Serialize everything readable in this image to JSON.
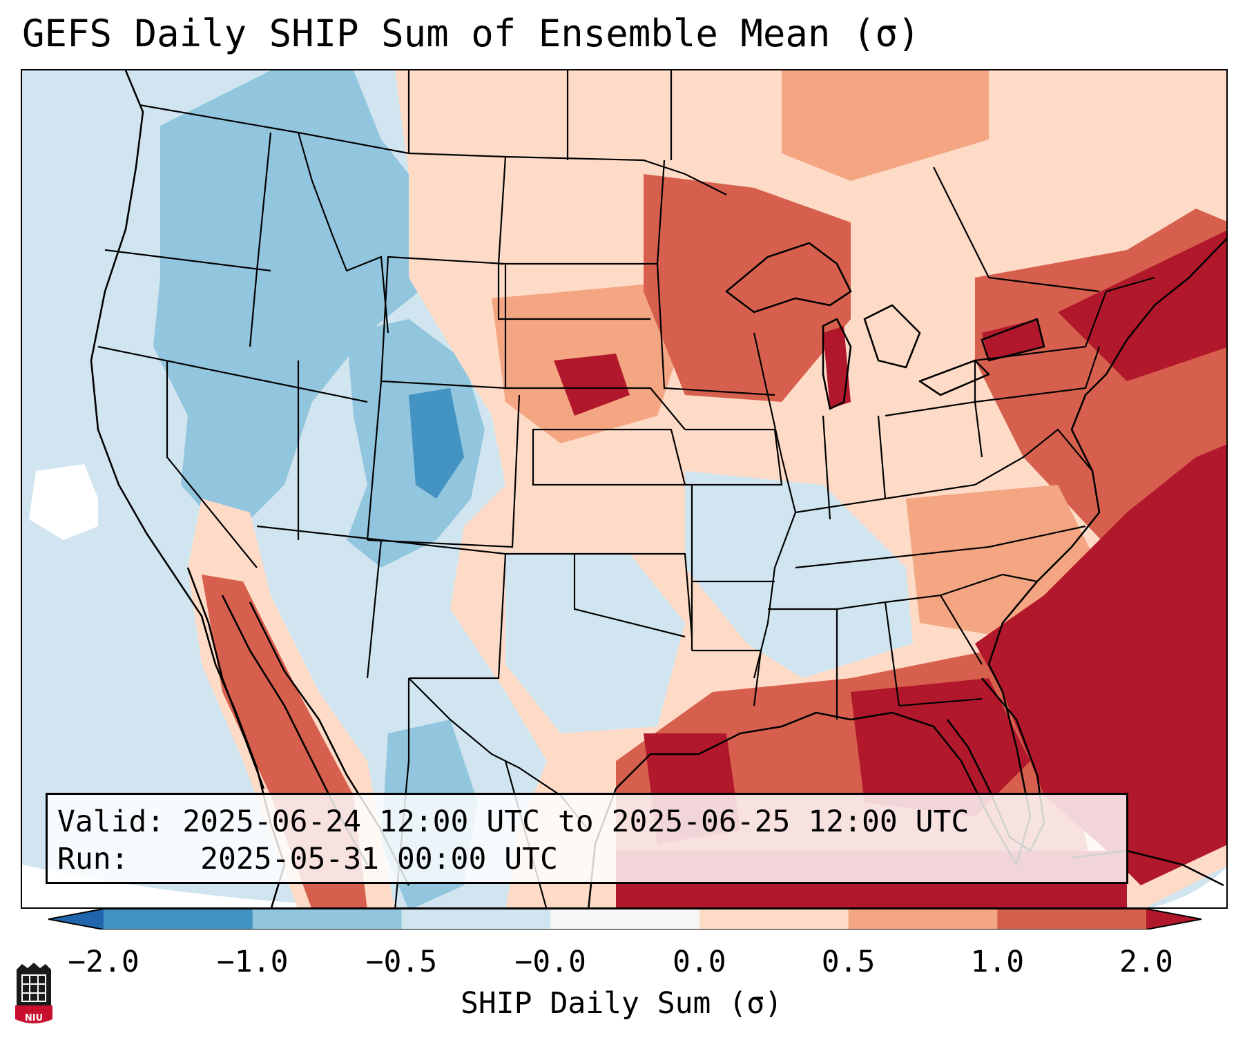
{
  "header": {
    "title": "GEFS Daily SHIP Sum of Ensemble Mean (σ)"
  },
  "info": {
    "valid_label": "Valid:",
    "valid_value": "2025-06-24 12:00 UTC to 2025-06-25 12:00 UTC",
    "run_label": "Run:",
    "run_value": "2025-05-31 00:00 UTC"
  },
  "colorbar": {
    "label": "SHIP Daily Sum (σ)",
    "tick_labels": [
      "−2.0",
      "−1.0",
      "−0.5",
      "−0.0",
      "0.0",
      "0.5",
      "1.0",
      "2.0"
    ],
    "bin_colors": [
      "#4393c3",
      "#92c5de",
      "#d1e5f0",
      "#f7f7f7",
      "#fddbc7",
      "#f4a582",
      "#d6604d",
      "#b2182b"
    ],
    "under_color": "#2166ac",
    "over_color": "#b2182b"
  },
  "logo": {
    "text": "NIU",
    "color": "#c8102e"
  }
}
